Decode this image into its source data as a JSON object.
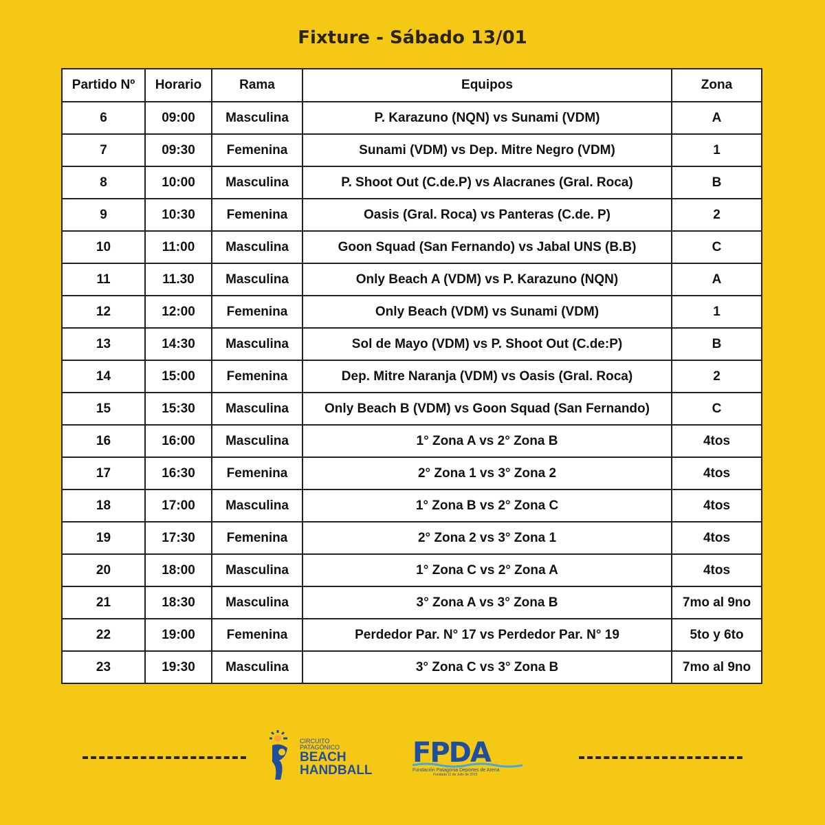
{
  "title": "Fixture - Sábado 13/01",
  "table": {
    "headers": [
      "Partido Nº",
      "Horario",
      "Rama",
      "Equipos",
      "Zona"
    ],
    "rows": [
      [
        "6",
        "09:00",
        "Masculina",
        "P. Karazuno (NQN) vs Sunami (VDM)",
        "A"
      ],
      [
        "7",
        "09:30",
        "Femenina",
        "Sunami (VDM) vs Dep. Mitre Negro (VDM)",
        "1"
      ],
      [
        "8",
        "10:00",
        "Masculina",
        "P. Shoot Out (C.de.P) vs Alacranes (Gral. Roca)",
        "B"
      ],
      [
        "9",
        "10:30",
        "Femenina",
        "Oasis (Gral. Roca) vs Panteras (C.de. P)",
        "2"
      ],
      [
        "10",
        "11:00",
        "Masculina",
        "Goon Squad (San Fernando) vs Jabal UNS (B.B)",
        "C"
      ],
      [
        "11",
        "11.30",
        "Masculina",
        "Only Beach A (VDM) vs P. Karazuno (NQN)",
        "A"
      ],
      [
        "12",
        "12:00",
        "Femenina",
        "Only Beach (VDM) vs Sunami (VDM)",
        "1"
      ],
      [
        "13",
        "14:30",
        "Masculina",
        "Sol de Mayo (VDM) vs P. Shoot Out (C.de:P)",
        "B"
      ],
      [
        "14",
        "15:00",
        "Femenina",
        "Dep. Mitre Naranja (VDM) vs Oasis (Gral. Roca)",
        "2"
      ],
      [
        "15",
        "15:30",
        "Masculina",
        "Only Beach B (VDM) vs Goon Squad (San Fernando)",
        "C"
      ],
      [
        "16",
        "16:00",
        "Masculina",
        "1° Zona A vs 2° Zona B",
        "4tos"
      ],
      [
        "17",
        "16:30",
        "Femenina",
        "2° Zona 1 vs 3° Zona 2",
        "4tos"
      ],
      [
        "18",
        "17:00",
        "Masculina",
        "1° Zona B vs 2° Zona C",
        "4tos"
      ],
      [
        "19",
        "17:30",
        "Femenina",
        "2° Zona 2 vs 3° Zona 1",
        "4tos"
      ],
      [
        "20",
        "18:00",
        "Masculina",
        "1° Zona C vs 2° Zona A",
        "4tos"
      ],
      [
        "21",
        "18:30",
        "Masculina",
        "3° Zona A vs 3° Zona B",
        "7mo al 9no"
      ],
      [
        "22",
        "19:00",
        "Femenina",
        "Perdedor Par. N° 17 vs Perdedor Par. N° 19",
        "5to y 6to"
      ],
      [
        "23",
        "19:30",
        "Masculina",
        "3° Zona C vs 3° Zona B",
        "7mo al 9no"
      ]
    ]
  },
  "logos": {
    "beach_handball": {
      "line1": "CIRCUITO",
      "line2": "PATAGÓNICO",
      "line3": "BEACH",
      "line4": "HANDBALL"
    },
    "fpda": {
      "name": "FPDA",
      "subtitle": "Fundación Patagonia Deportes de Arena",
      "founded": "Fundada 11 de Julio de 2015"
    }
  },
  "colors": {
    "background": "#F6C816",
    "logo_blue": "#1f4f9c"
  }
}
